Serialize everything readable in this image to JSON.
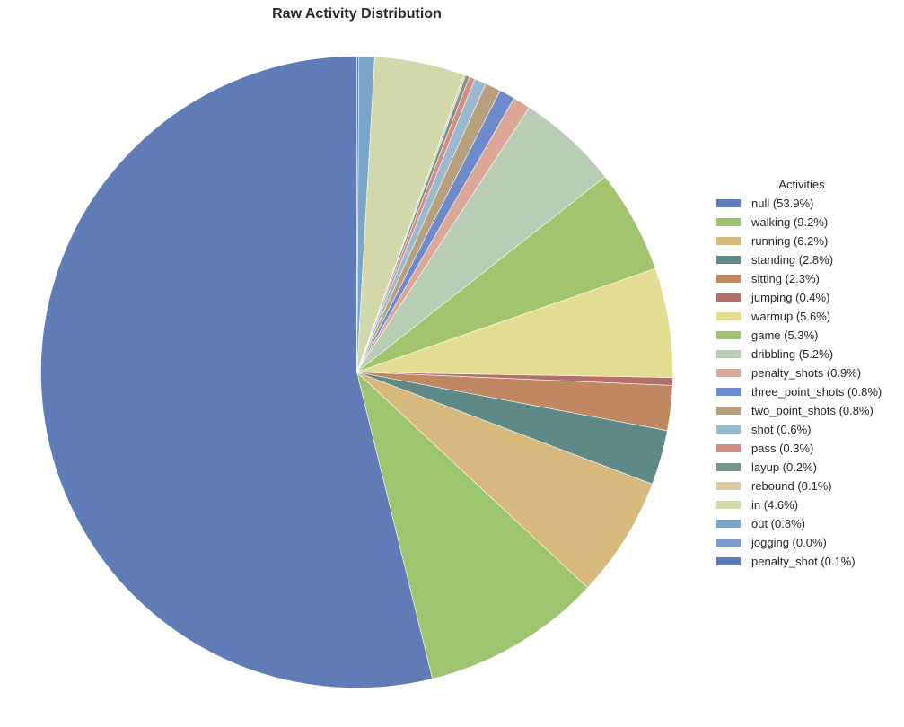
{
  "chart_data": {
    "type": "pie",
    "title": "Raw Activity Distribution",
    "legend_title": "Activities",
    "legend_position": "right",
    "start_angle": 90,
    "counterclock": true,
    "categories": [
      "null",
      "walking",
      "running",
      "standing",
      "sitting",
      "jumping",
      "warmup",
      "game",
      "dribbling",
      "penalty_shots",
      "three_point_shots",
      "two_point_shots",
      "shot",
      "pass",
      "layup",
      "rebound",
      "in",
      "out",
      "jogging",
      "penalty_shot"
    ],
    "values": [
      53.9,
      9.2,
      6.2,
      2.8,
      2.3,
      0.4,
      5.6,
      5.3,
      5.2,
      0.9,
      0.8,
      0.8,
      0.6,
      0.3,
      0.2,
      0.1,
      4.6,
      0.8,
      0.0,
      0.1
    ],
    "labels": [
      "null (53.9%)",
      "walking (9.2%)",
      "running (6.2%)",
      "standing (2.8%)",
      "sitting (2.3%)",
      "jumping (0.4%)",
      "warmup (5.6%)",
      "game (5.3%)",
      "dribbling (5.2%)",
      "penalty_shots (0.9%)",
      "three_point_shots (0.8%)",
      "two_point_shots (0.8%)",
      "shot (0.6%)",
      "pass (0.3%)",
      "layup (0.2%)",
      "rebound (0.1%)",
      "in (4.6%)",
      "out (0.8%)",
      "jogging (0.0%)",
      "penalty_shot (0.1%)"
    ],
    "colors": [
      "#5f7cb6",
      "#9dc46e",
      "#d7b97e",
      "#5d8a86",
      "#c08763",
      "#b3706a",
      "#e3dd91",
      "#a3c46f",
      "#b9ccb5",
      "#dba897",
      "#6e8acb",
      "#b8a07e",
      "#99b9cf",
      "#d48c85",
      "#78948f",
      "#dfcaa0",
      "#d3d8aa",
      "#7aa5c7",
      "#7d9bce",
      "#5e7db6"
    ]
  }
}
